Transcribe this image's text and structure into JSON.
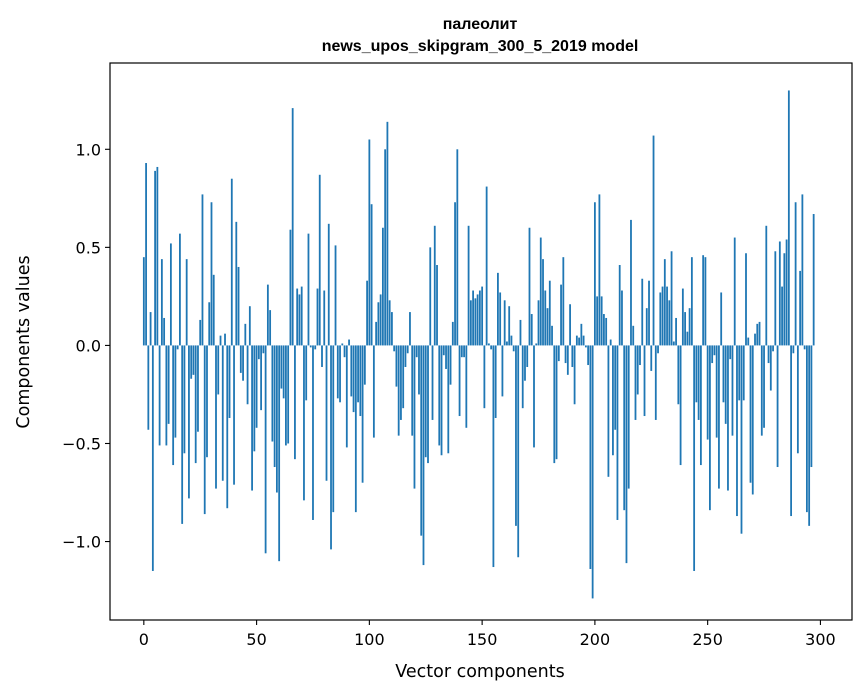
{
  "chart_data": {
    "type": "bar",
    "title": "палеолит",
    "subtitle": "news_upos_skipgram_300_5_2019 model",
    "xlabel": "Vector components",
    "ylabel": "Components values",
    "xlim": [
      -15,
      314
    ],
    "ylim": [
      -1.4,
      1.44
    ],
    "xticks": [
      0,
      50,
      100,
      150,
      200,
      250,
      300
    ],
    "xtick_labels": [
      "0",
      "50",
      "100",
      "150",
      "200",
      "250",
      "300"
    ],
    "yticks": [
      -1.0,
      -0.5,
      0.0,
      0.5,
      1.0
    ],
    "ytick_labels": [
      "−1.0",
      "−0.5",
      "0.0",
      "0.5",
      "1.0"
    ],
    "bar_color": "#1f77b4",
    "grid": false,
    "legend": "none",
    "x": "0..299",
    "values": [
      0.45,
      0.93,
      -0.43,
      0.17,
      -1.15,
      0.89,
      0.91,
      -0.51,
      0.44,
      0.14,
      -0.51,
      -0.4,
      0.52,
      -0.61,
      -0.47,
      -0.02,
      0.57,
      -0.91,
      -0.55,
      0.44,
      -0.78,
      -0.17,
      -0.15,
      -0.6,
      -0.44,
      0.13,
      0.77,
      -0.86,
      -0.57,
      0.22,
      0.73,
      0.36,
      -0.73,
      -0.25,
      0.05,
      -0.69,
      0.06,
      -0.83,
      -0.37,
      0.85,
      -0.71,
      0.63,
      0.4,
      -0.14,
      -0.18,
      0.11,
      -0.3,
      0.2,
      -0.74,
      -0.54,
      -0.42,
      -0.07,
      -0.33,
      -0.04,
      -1.06,
      0.31,
      0.18,
      -0.49,
      -0.62,
      -0.75,
      -1.1,
      -0.22,
      -0.27,
      -0.51,
      -0.5,
      0.59,
      1.21,
      -0.58,
      0.29,
      0.26,
      0.3,
      -0.79,
      -0.28,
      0.57,
      -0.01,
      -0.89,
      -0.02,
      0.29,
      0.87,
      -0.11,
      0.28,
      -0.69,
      0.62,
      -1.04,
      -0.85,
      0.51,
      -0.27,
      -0.29,
      0.01,
      -0.06,
      -0.52,
      0.03,
      -0.26,
      -0.34,
      -0.85,
      -0.29,
      -0.36,
      -0.7,
      -0.2,
      0.33,
      1.05,
      0.72,
      -0.47,
      0.12,
      0.22,
      0.26,
      0.6,
      1.0,
      1.14,
      0.23,
      0.17,
      -0.03,
      -0.21,
      -0.46,
      -0.38,
      -0.32,
      -0.11,
      -0.04,
      0.17,
      -0.46,
      -0.73,
      -0.06,
      -0.25,
      -0.97,
      -1.12,
      -0.57,
      -0.6,
      0.5,
      -0.38,
      0.61,
      0.41,
      -0.51,
      -0.56,
      -0.05,
      -0.12,
      -0.55,
      -0.2,
      0.12,
      0.73,
      1.0,
      -0.36,
      -0.06,
      -0.06,
      -0.42,
      0.61,
      0.23,
      0.28,
      0.24,
      0.26,
      0.28,
      0.3,
      -0.32,
      0.81,
      0.01,
      -0.02,
      -1.13,
      -0.37,
      0.37,
      0.27,
      -0.26,
      0.23,
      0.02,
      0.2,
      0.05,
      -0.03,
      -0.92,
      -1.08,
      0.13,
      -0.32,
      -0.18,
      -0.11,
      0.6,
      0.16,
      -0.52,
      0.01,
      0.23,
      0.55,
      0.44,
      0.28,
      0.19,
      0.33,
      0.1,
      -0.6,
      -0.58,
      -0.08,
      0.31,
      0.45,
      -0.09,
      -0.15,
      0.21,
      -0.11,
      -0.3,
      0.05,
      0.04,
      0.11,
      0.05,
      -0.01,
      -0.1,
      -1.14,
      -1.29,
      0.73,
      0.25,
      0.77,
      0.25,
      0.16,
      0.14,
      -0.67,
      0.03,
      -0.56,
      -0.43,
      -0.89,
      0.41,
      0.28,
      -0.84,
      -1.11,
      -0.73,
      0.64,
      0.1,
      -0.38,
      -0.25,
      -0.1,
      0.34,
      -0.36,
      0.19,
      0.33,
      -0.13,
      1.07,
      -0.38,
      -0.04,
      0.27,
      0.3,
      0.44,
      0.3,
      0.23,
      0.48,
      0.02,
      0.14,
      -0.3,
      -0.61,
      0.29,
      0.17,
      0.07,
      0.19,
      0.45,
      -1.15,
      -0.29,
      -0.38,
      -0.61,
      0.46,
      0.45,
      -0.48,
      -0.84,
      -0.09,
      -0.05,
      -0.47,
      -0.73,
      0.27,
      -0.29,
      -0.4,
      -0.74,
      -0.07,
      -0.46,
      0.55,
      -0.87,
      -0.28,
      -0.96,
      -0.28,
      0.47,
      0.04,
      -0.7,
      -0.76,
      0.06,
      0.11,
      0.12,
      -0.46,
      -0.42,
      0.61,
      -0.09,
      -0.23,
      -0.03,
      0.48,
      -0.62,
      0.53,
      0.3,
      0.47,
      0.54,
      1.3,
      -0.87,
      -0.04,
      0.73,
      -0.55,
      0.38,
      0.77,
      -0.02,
      -0.85,
      -0.92,
      -0.62,
      0.67
    ]
  }
}
